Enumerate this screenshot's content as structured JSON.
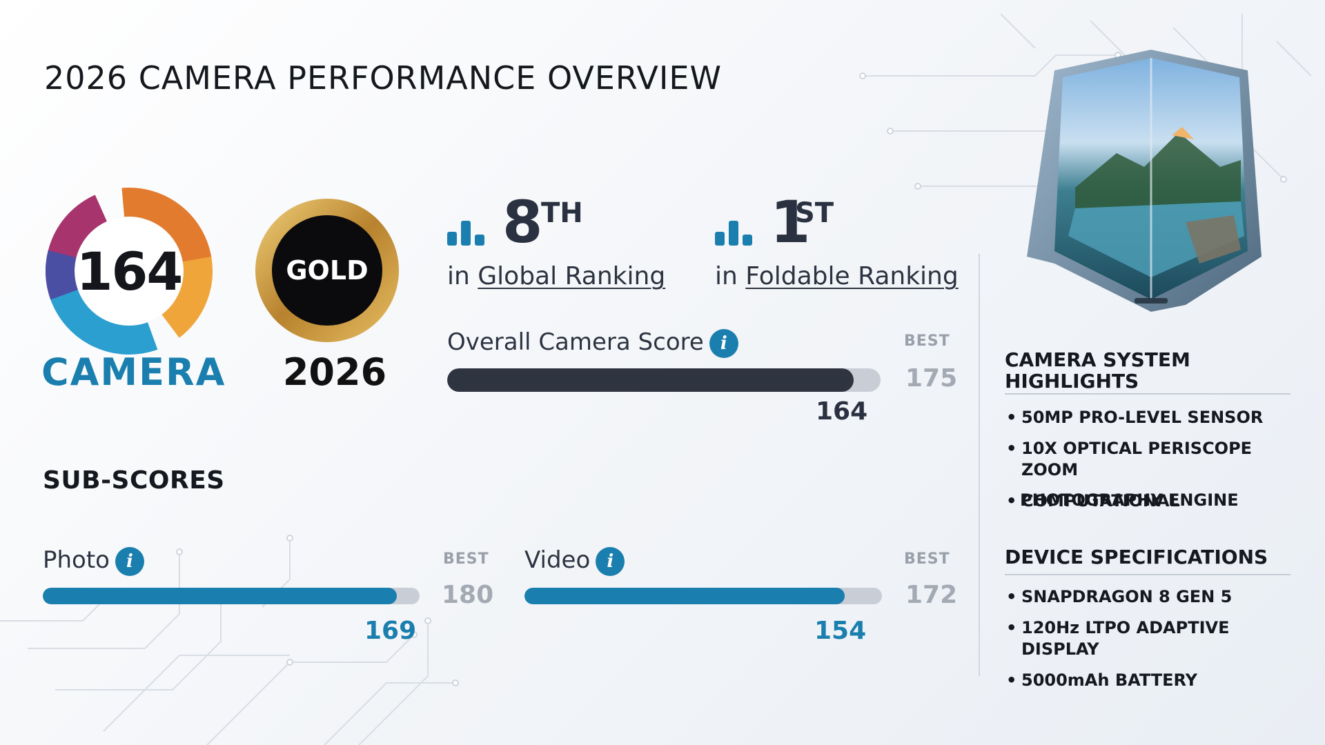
{
  "page": {
    "title": "2026 CAMERA PERFORMANCE OVERVIEW"
  },
  "badges": {
    "camera_score": "164",
    "camera_label": "CAMERA",
    "award": "GOLD",
    "year": "2026"
  },
  "rankings": [
    {
      "rank": "8",
      "suffix": "TH",
      "prefix": "in",
      "label": "Global Ranking"
    },
    {
      "rank": "1",
      "suffix": "ST",
      "prefix": "in",
      "label": "Foldable Ranking"
    }
  ],
  "overall": {
    "label": "Overall Camera Score",
    "info_icon": "info-icon",
    "best_label": "BEST",
    "best": "175",
    "score": "164",
    "score_value": 164,
    "best_value": 175
  },
  "subscores": {
    "heading": "SUB-SCORES",
    "items": [
      {
        "label": "Photo",
        "info_icon": "info-icon",
        "best_label": "BEST",
        "best": "180",
        "score": "169",
        "score_value": 169,
        "best_value": 180
      },
      {
        "label": "Video",
        "info_icon": "info-icon",
        "best_label": "BEST",
        "best": "172",
        "score": "154",
        "score_value": 154,
        "best_value": 172
      }
    ]
  },
  "highlights": {
    "heading_line1": "CAMERA SYSTEM",
    "heading_line2": "HIGHLIGHTS",
    "items": [
      "50MP PRO-LEVEL SENSOR",
      "10X OPTICAL PERISCOPE ZOOM",
      "COMPUTATIONAL",
      "PHOTOGRAPHY ENGINE"
    ]
  },
  "specs": {
    "heading": "DEVICE SPECIFICATIONS",
    "items": [
      "SNAPDRAGON 8 GEN 5",
      "120Hz LTPO ADAPTIVE DISPLAY",
      "5000mAh BATTERY"
    ]
  },
  "colors": {
    "accent_blue": "#1a7fae",
    "dark_bar": "#2f3441",
    "track": "#c9ced6"
  },
  "image": {
    "phone": "foldable-phone-landscape-image"
  }
}
